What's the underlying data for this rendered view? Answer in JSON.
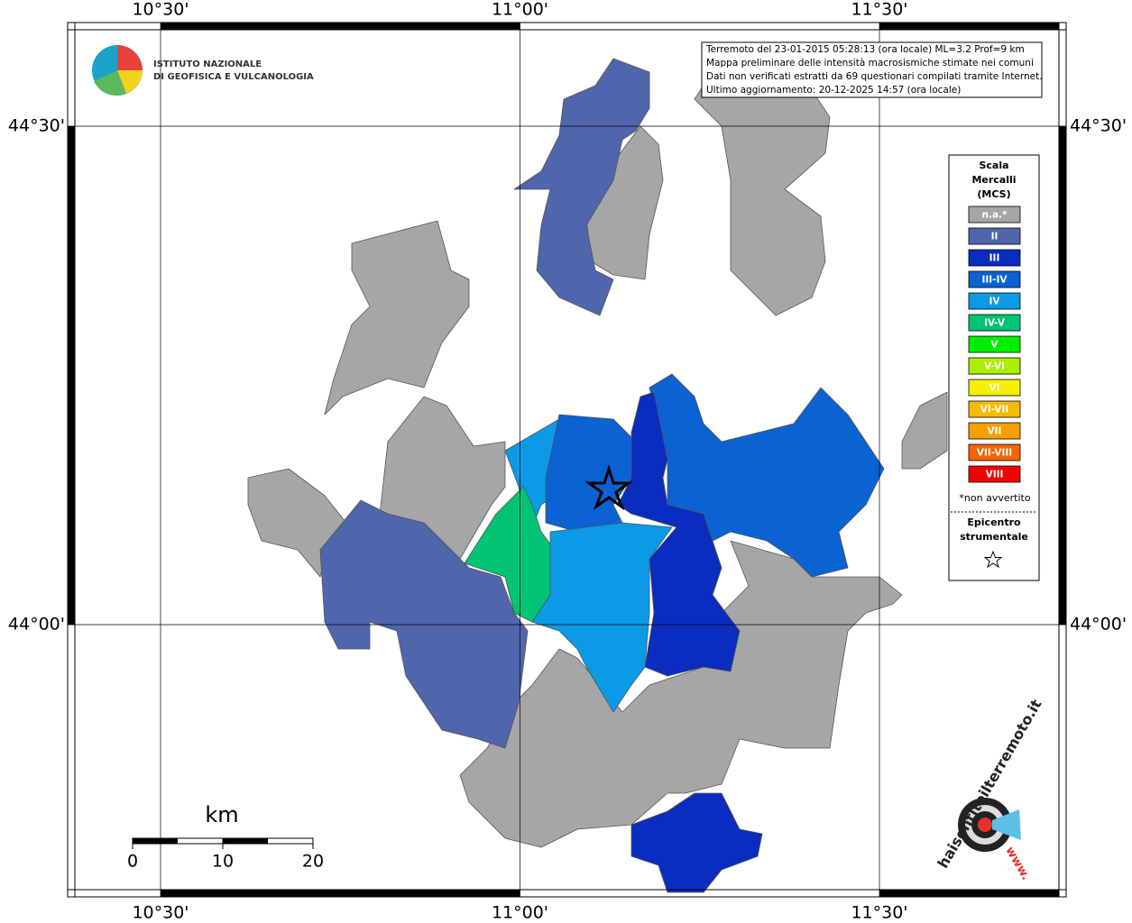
{
  "header": {
    "institute_line1": "ISTITUTO NAZIONALE",
    "institute_line2": "DI GEOFISICA E VULCANOLOGIA"
  },
  "info_box": [
    "Terremoto del 23-01-2015 05:28:13 (ora locale) ML=3.2 Prof=9 km",
    "Mappa preliminare delle intensità macrosismiche stimate nei comuni",
    "Dati non verificati estratti da 69 questionari compilati tramite Internet.",
    "Ultimo aggiornamento: 20-12-2025 14:57 (ora locale)"
  ],
  "lon_ticks": [
    {
      "value": 10.5,
      "label": "10°30'"
    },
    {
      "value": 11,
      "label": "11°00'"
    },
    {
      "value": 11.5,
      "label": "11°30'"
    }
  ],
  "lat_ticks": [
    {
      "value": 44.5,
      "label": "44°30'"
    },
    {
      "value": 44,
      "label": "44°00'"
    }
  ],
  "legend": {
    "title_lines": [
      "Scala",
      "Mercalli",
      "(MCS)"
    ],
    "items": [
      {
        "label": "n.a.*",
        "color": "#a6a6a6"
      },
      {
        "label": "II",
        "color": "#4f66ad"
      },
      {
        "label": "III",
        "color": "#0a2dbf"
      },
      {
        "label": "III-IV",
        "color": "#0a62d3"
      },
      {
        "label": "IV",
        "color": "#0a9ae6"
      },
      {
        "label": "IV-V",
        "color": "#00c373"
      },
      {
        "label": "V",
        "color": "#00ee00"
      },
      {
        "label": "V-VI",
        "color": "#aaee00"
      },
      {
        "label": "VI",
        "color": "#f5ef00"
      },
      {
        "label": "VI-VII",
        "color": "#f5bb00"
      },
      {
        "label": "VII",
        "color": "#f5a000"
      },
      {
        "label": "VII-VIII",
        "color": "#f56400"
      },
      {
        "label": "VIII",
        "color": "#f50000"
      }
    ],
    "note": "*non avvertito",
    "epicenter_lines": [
      "Epicentro",
      "strumentale"
    ]
  },
  "scale_bar": {
    "unit": "km",
    "ticks": [
      0,
      10,
      20
    ]
  },
  "logo": {
    "site": "haisentitoilterremoto.it",
    "prefix": "www."
  }
}
